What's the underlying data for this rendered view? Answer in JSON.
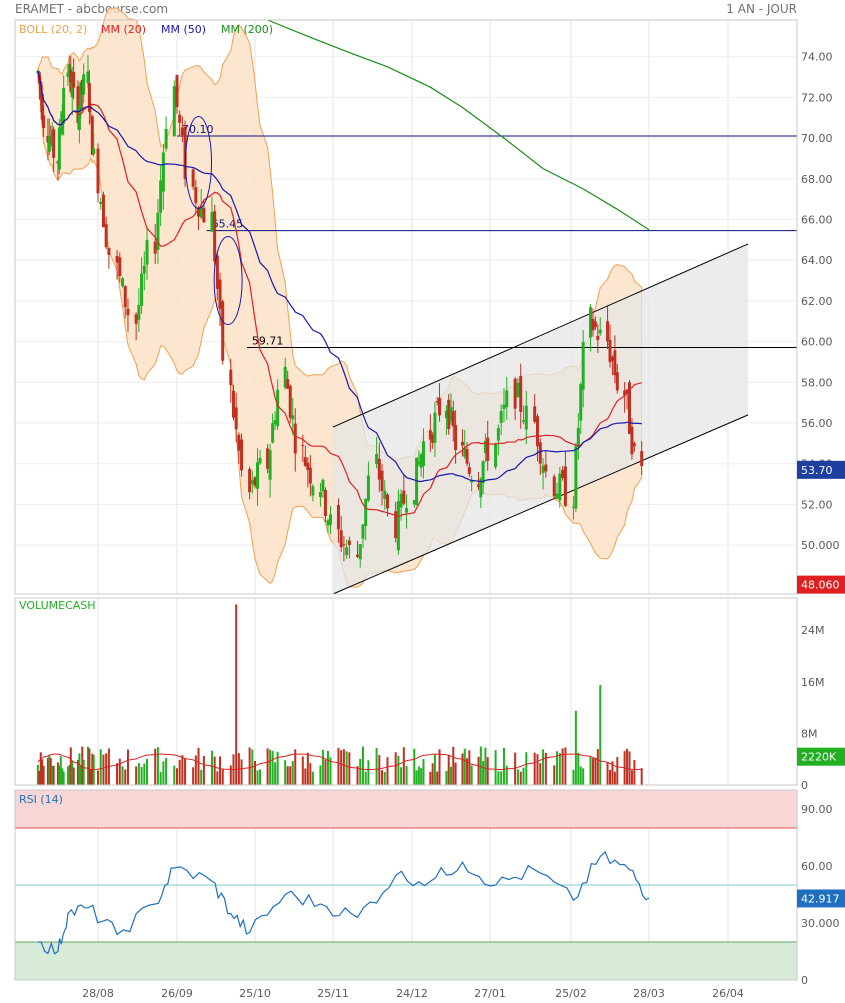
{
  "header": {
    "title": "ERAMET - abcbourse.com",
    "period": "1 AN - JOUR"
  },
  "colors": {
    "boll": "#f0a050",
    "boll_fill": "#fbe0c4",
    "mm20": "#e02020",
    "mm50": "#1818b0",
    "mm200": "#159015",
    "up": "#22b022",
    "down": "#c03020",
    "volume_label": "#22b022",
    "rsi_line": "#1f6fc0",
    "rsi_high_zone": "#f9d6d6",
    "rsi_low_zone": "#d8ebd8",
    "channel_fill": "#e6e6e6",
    "level_line": "#0d1080",
    "last_price_tag": "#1f3fa0",
    "ref_tag": "#e02020",
    "volume_tag": "#22b022",
    "rsi_tag": "#1f6fc0"
  },
  "chart_data": [
    {
      "type": "candlestick",
      "panel": "price",
      "indicators": [
        "BOLL (20, 2)",
        "MM (20)",
        "MM (50)",
        "MM (200)"
      ],
      "y_ticks": [
        "74.00",
        "72.00",
        "70.00",
        "68.00",
        "66.00",
        "64.00",
        "62.00",
        "60.00",
        "58.00",
        "56.00",
        "54.00",
        "52.00",
        "50.000"
      ],
      "ylim": [
        47.6,
        75.8
      ],
      "x_ticks": [
        "28/08",
        "26/09",
        "25/10",
        "25/11",
        "24/12",
        "27/01",
        "25/02",
        "28/03",
        "26/04"
      ],
      "last_price": "53.70",
      "ref_price": "48.060",
      "levels": [
        {
          "label": "70.10",
          "value": 70.1
        },
        {
          "label": "65.45",
          "value": 65.45
        },
        {
          "label": "59.71",
          "value": 59.71
        }
      ],
      "trend_channel": {
        "start": "2023-11-25",
        "end": "2024-05-03",
        "upper": [
          55.8,
          64.8
        ],
        "lower": [
          47.6,
          56.4
        ]
      },
      "closes_weekly": [
        {
          "date": "2023-07-17",
          "close": 73.2
        },
        {
          "date": "2023-07-24",
          "close": 70.5
        },
        {
          "date": "2023-07-31",
          "close": 69.0
        },
        {
          "date": "2023-08-07",
          "close": 73.5
        },
        {
          "date": "2023-08-14",
          "close": 71.5
        },
        {
          "date": "2023-08-21",
          "close": 72.8
        },
        {
          "date": "2023-08-28",
          "close": 68.0
        },
        {
          "date": "2023-09-04",
          "close": 63.5
        },
        {
          "date": "2023-09-11",
          "close": 61.0
        },
        {
          "date": "2023-09-18",
          "close": 65.0
        },
        {
          "date": "2023-09-25",
          "close": 72.5
        },
        {
          "date": "2023-10-02",
          "close": 67.5
        },
        {
          "date": "2023-10-09",
          "close": 66.0
        },
        {
          "date": "2023-10-16",
          "close": 57.5
        },
        {
          "date": "2023-10-23",
          "close": 52.5
        },
        {
          "date": "2023-10-30",
          "close": 54.0
        },
        {
          "date": "2023-11-06",
          "close": 58.5
        },
        {
          "date": "2023-11-13",
          "close": 54.5
        },
        {
          "date": "2023-11-20",
          "close": 53.0
        },
        {
          "date": "2023-11-27",
          "close": 50.5
        },
        {
          "date": "2023-12-04",
          "close": 49.5
        },
        {
          "date": "2023-12-11",
          "close": 54.0
        },
        {
          "date": "2023-12-18",
          "close": 51.0
        },
        {
          "date": "2023-12-25",
          "close": 53.0
        },
        {
          "date": "2024-01-01",
          "close": 55.5
        },
        {
          "date": "2024-01-08",
          "close": 57.0
        },
        {
          "date": "2024-01-15",
          "close": 54.5
        },
        {
          "date": "2024-01-22",
          "close": 53.5
        },
        {
          "date": "2024-01-29",
          "close": 55.0
        },
        {
          "date": "2024-02-05",
          "close": 57.5
        },
        {
          "date": "2024-02-12",
          "close": 56.0
        },
        {
          "date": "2024-02-19",
          "close": 53.0
        },
        {
          "date": "2024-02-26",
          "close": 52.5
        },
        {
          "date": "2024-03-04",
          "close": 61.0
        },
        {
          "date": "2024-03-11",
          "close": 60.0
        },
        {
          "date": "2024-03-18",
          "close": 57.5
        },
        {
          "date": "2024-03-25",
          "close": 53.7
        }
      ],
      "mm200": [
        {
          "date": "2023-10-30",
          "value": 75.8
        },
        {
          "date": "2023-11-15",
          "value": 75.0
        },
        {
          "date": "2023-12-01",
          "value": 74.2
        },
        {
          "date": "2023-12-15",
          "value": 73.5
        },
        {
          "date": "2024-01-01",
          "value": 72.5
        },
        {
          "date": "2024-01-15",
          "value": 71.5
        },
        {
          "date": "2024-02-01",
          "value": 70.0
        },
        {
          "date": "2024-02-15",
          "value": 68.5
        },
        {
          "date": "2024-03-01",
          "value": 67.5
        },
        {
          "date": "2024-03-15",
          "value": 66.5
        },
        {
          "date": "2024-03-28",
          "value": 65.5
        }
      ]
    },
    {
      "type": "bar",
      "panel": "volume",
      "title": "VOLUMECASH",
      "y_ticks": [
        "24M",
        "16M",
        "8M",
        "0"
      ],
      "ylim": [
        0,
        29000000
      ],
      "last_value": "2220K",
      "spikes": [
        {
          "date": "2023-10-18",
          "value": 28000000
        },
        {
          "date": "2024-02-27",
          "value": 11500000
        },
        {
          "date": "2024-03-08",
          "value": 15500000
        }
      ],
      "typical_value": 4000000
    },
    {
      "type": "line",
      "panel": "rsi",
      "title": "RSI (14)",
      "y_ticks": [
        "90.00",
        "60.00",
        "30.000",
        "0"
      ],
      "ylim": [
        0,
        100
      ],
      "bands": [
        80,
        50,
        20
      ],
      "last_value": "42.917",
      "values": [
        {
          "date": "2023-07-17",
          "value": 20
        },
        {
          "date": "2023-07-31",
          "value": 15
        },
        {
          "date": "2023-08-07",
          "value": 35
        },
        {
          "date": "2023-08-21",
          "value": 38
        },
        {
          "date": "2023-09-04",
          "value": 24
        },
        {
          "date": "2023-09-18",
          "value": 40
        },
        {
          "date": "2023-09-25",
          "value": 59
        },
        {
          "date": "2023-10-09",
          "value": 52
        },
        {
          "date": "2023-10-16",
          "value": 35
        },
        {
          "date": "2023-10-23",
          "value": 25
        },
        {
          "date": "2023-11-06",
          "value": 45
        },
        {
          "date": "2023-11-20",
          "value": 40
        },
        {
          "date": "2023-12-04",
          "value": 33
        },
        {
          "date": "2023-12-18",
          "value": 55
        },
        {
          "date": "2024-01-01",
          "value": 52
        },
        {
          "date": "2024-01-15",
          "value": 62
        },
        {
          "date": "2024-01-29",
          "value": 50
        },
        {
          "date": "2024-02-12",
          "value": 58
        },
        {
          "date": "2024-02-26",
          "value": 42
        },
        {
          "date": "2024-03-08",
          "value": 65
        },
        {
          "date": "2024-03-20",
          "value": 58
        },
        {
          "date": "2024-03-28",
          "value": 43
        }
      ]
    }
  ]
}
